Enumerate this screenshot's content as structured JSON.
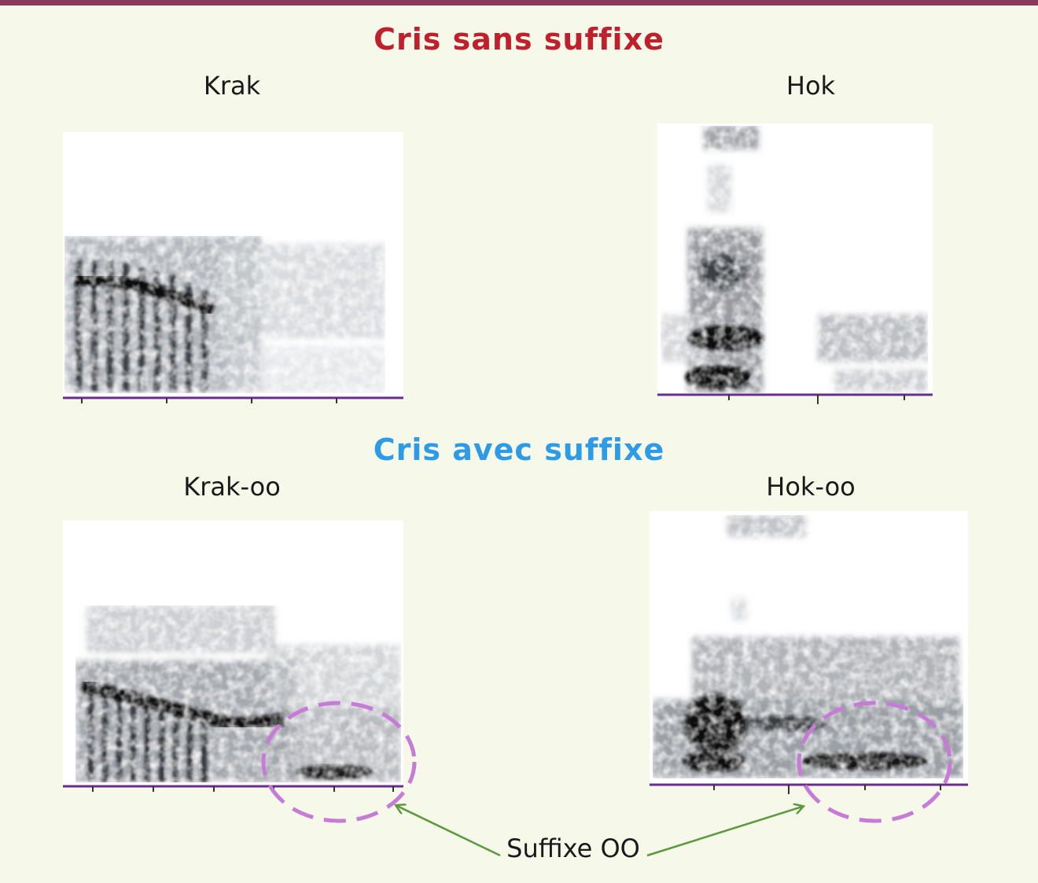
{
  "section_no_suffix": {
    "title": "Cris sans suffixe",
    "color": "#c01f2c"
  },
  "section_with_suffix": {
    "title": "Cris avec suffixe",
    "color": "#2e9be6"
  },
  "spectrograms": [
    {
      "label": "Krak",
      "suffix": false
    },
    {
      "label": "Hok",
      "suffix": false
    },
    {
      "label": "Krak-oo",
      "suffix": true
    },
    {
      "label": "Hok-oo",
      "suffix": true
    }
  ],
  "annotation": {
    "text": "Suffixe OO",
    "arrow_color": "#5a9a3c",
    "ellipse_color": "#c77ad6"
  },
  "colors": {
    "background": "#f6f8ea",
    "rule": "#8a3a5a",
    "axis": "#6a2c8f"
  }
}
